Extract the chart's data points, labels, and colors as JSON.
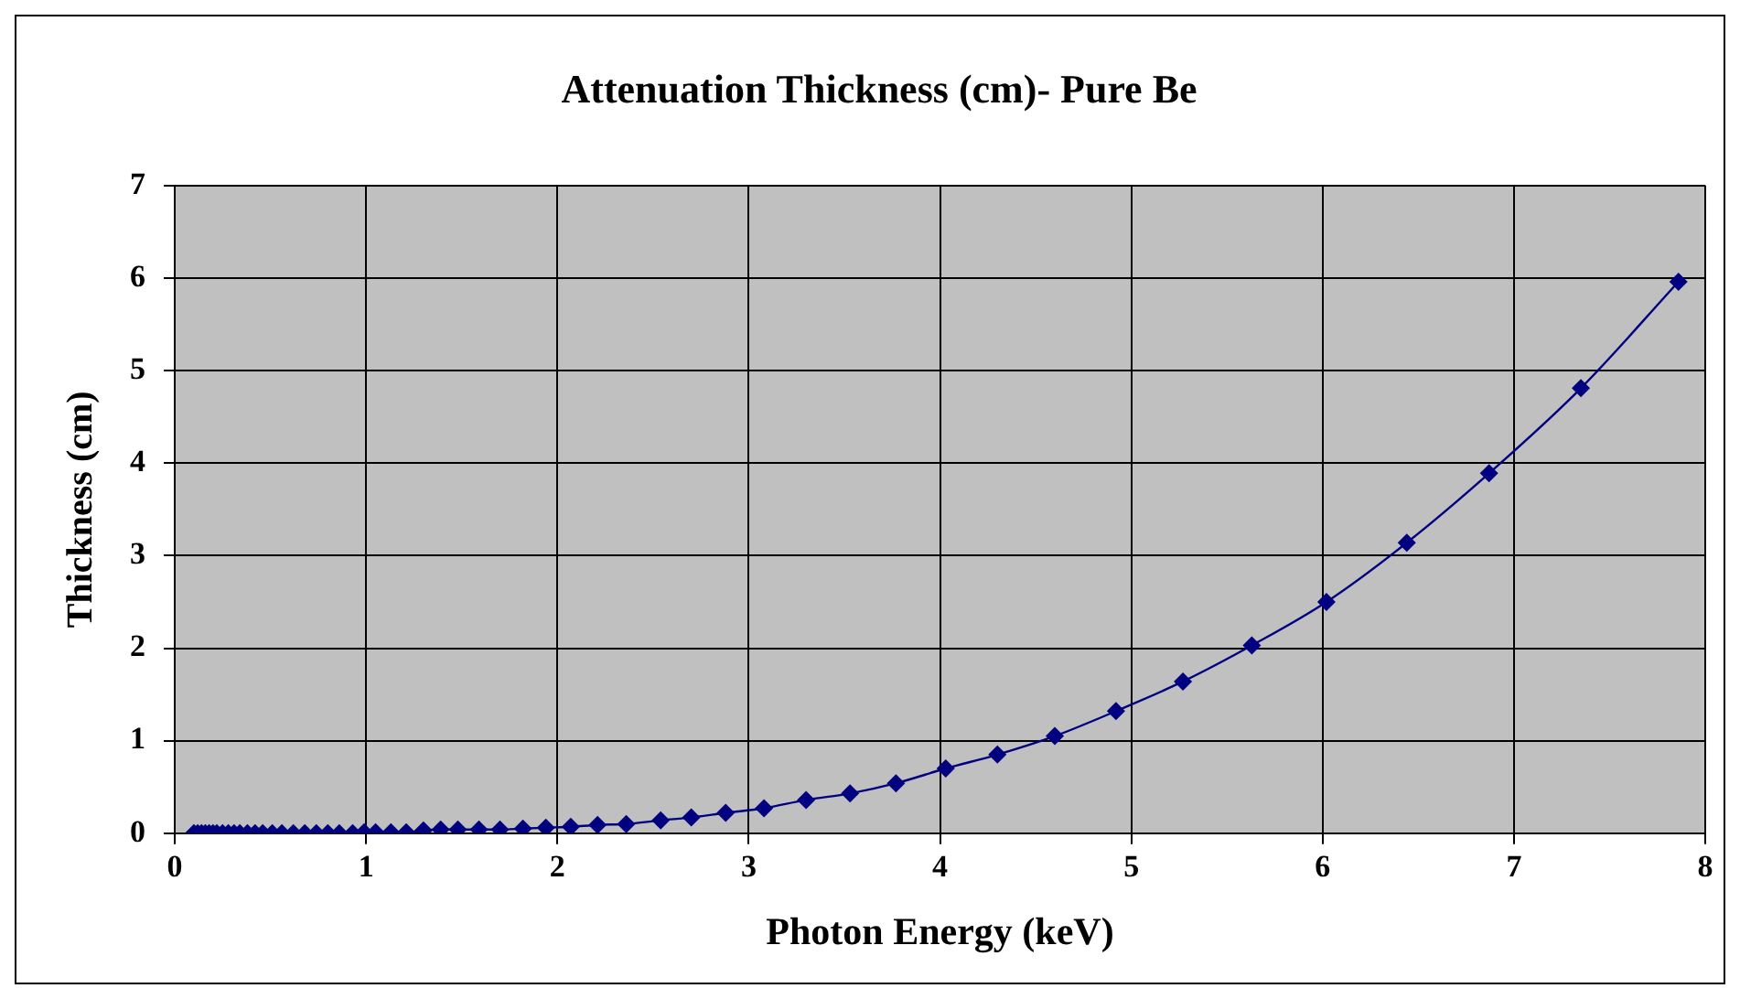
{
  "chart_data": {
    "type": "line",
    "title": "Attenuation Thickness (cm)- Pure Be",
    "xlabel": "Photon Energy (keV)",
    "ylabel": "Thickness (cm)",
    "xlim": [
      0,
      8
    ],
    "xticks": [
      0,
      1,
      2,
      3,
      4,
      5,
      6,
      7,
      8
    ],
    "ylim": [
      0,
      7
    ],
    "yticks": [
      0,
      1,
      2,
      3,
      4,
      5,
      6,
      7
    ],
    "grid": true,
    "legend": false,
    "marker": "diamond",
    "line_style": "solid",
    "series": [
      {
        "color": "#000080",
        "x": [
          0.1,
          0.12,
          0.14,
          0.16,
          0.18,
          0.2,
          0.22,
          0.25,
          0.28,
          0.31,
          0.34,
          0.38,
          0.42,
          0.46,
          0.51,
          0.56,
          0.62,
          0.68,
          0.74,
          0.8,
          0.86,
          0.93,
          0.99,
          1.05,
          1.13,
          1.21,
          1.3,
          1.39,
          1.48,
          1.59,
          1.7,
          1.82,
          1.94,
          2.07,
          2.21,
          2.36,
          2.54,
          2.7,
          2.88,
          3.08,
          3.3,
          3.53,
          3.77,
          4.03,
          4.3,
          4.6,
          4.92,
          5.27,
          5.63,
          6.02,
          6.44,
          6.87,
          7.35,
          7.86
        ],
        "values": [
          0,
          0,
          0,
          0,
          0,
          0,
          0,
          0,
          0,
          0,
          0,
          0,
          0,
          0,
          0,
          0,
          0,
          0,
          0,
          0,
          0,
          0,
          0.01,
          0.01,
          0.01,
          0.01,
          0.03,
          0.04,
          0.04,
          0.04,
          0.04,
          0.05,
          0.06,
          0.07,
          0.09,
          0.1,
          0.14,
          0.17,
          0.22,
          0.27,
          0.36,
          0.43,
          0.54,
          0.7,
          0.85,
          1.05,
          1.32,
          1.64,
          2.03,
          2.5,
          3.14,
          3.89,
          4.81,
          5.96
        ]
      }
    ]
  }
}
